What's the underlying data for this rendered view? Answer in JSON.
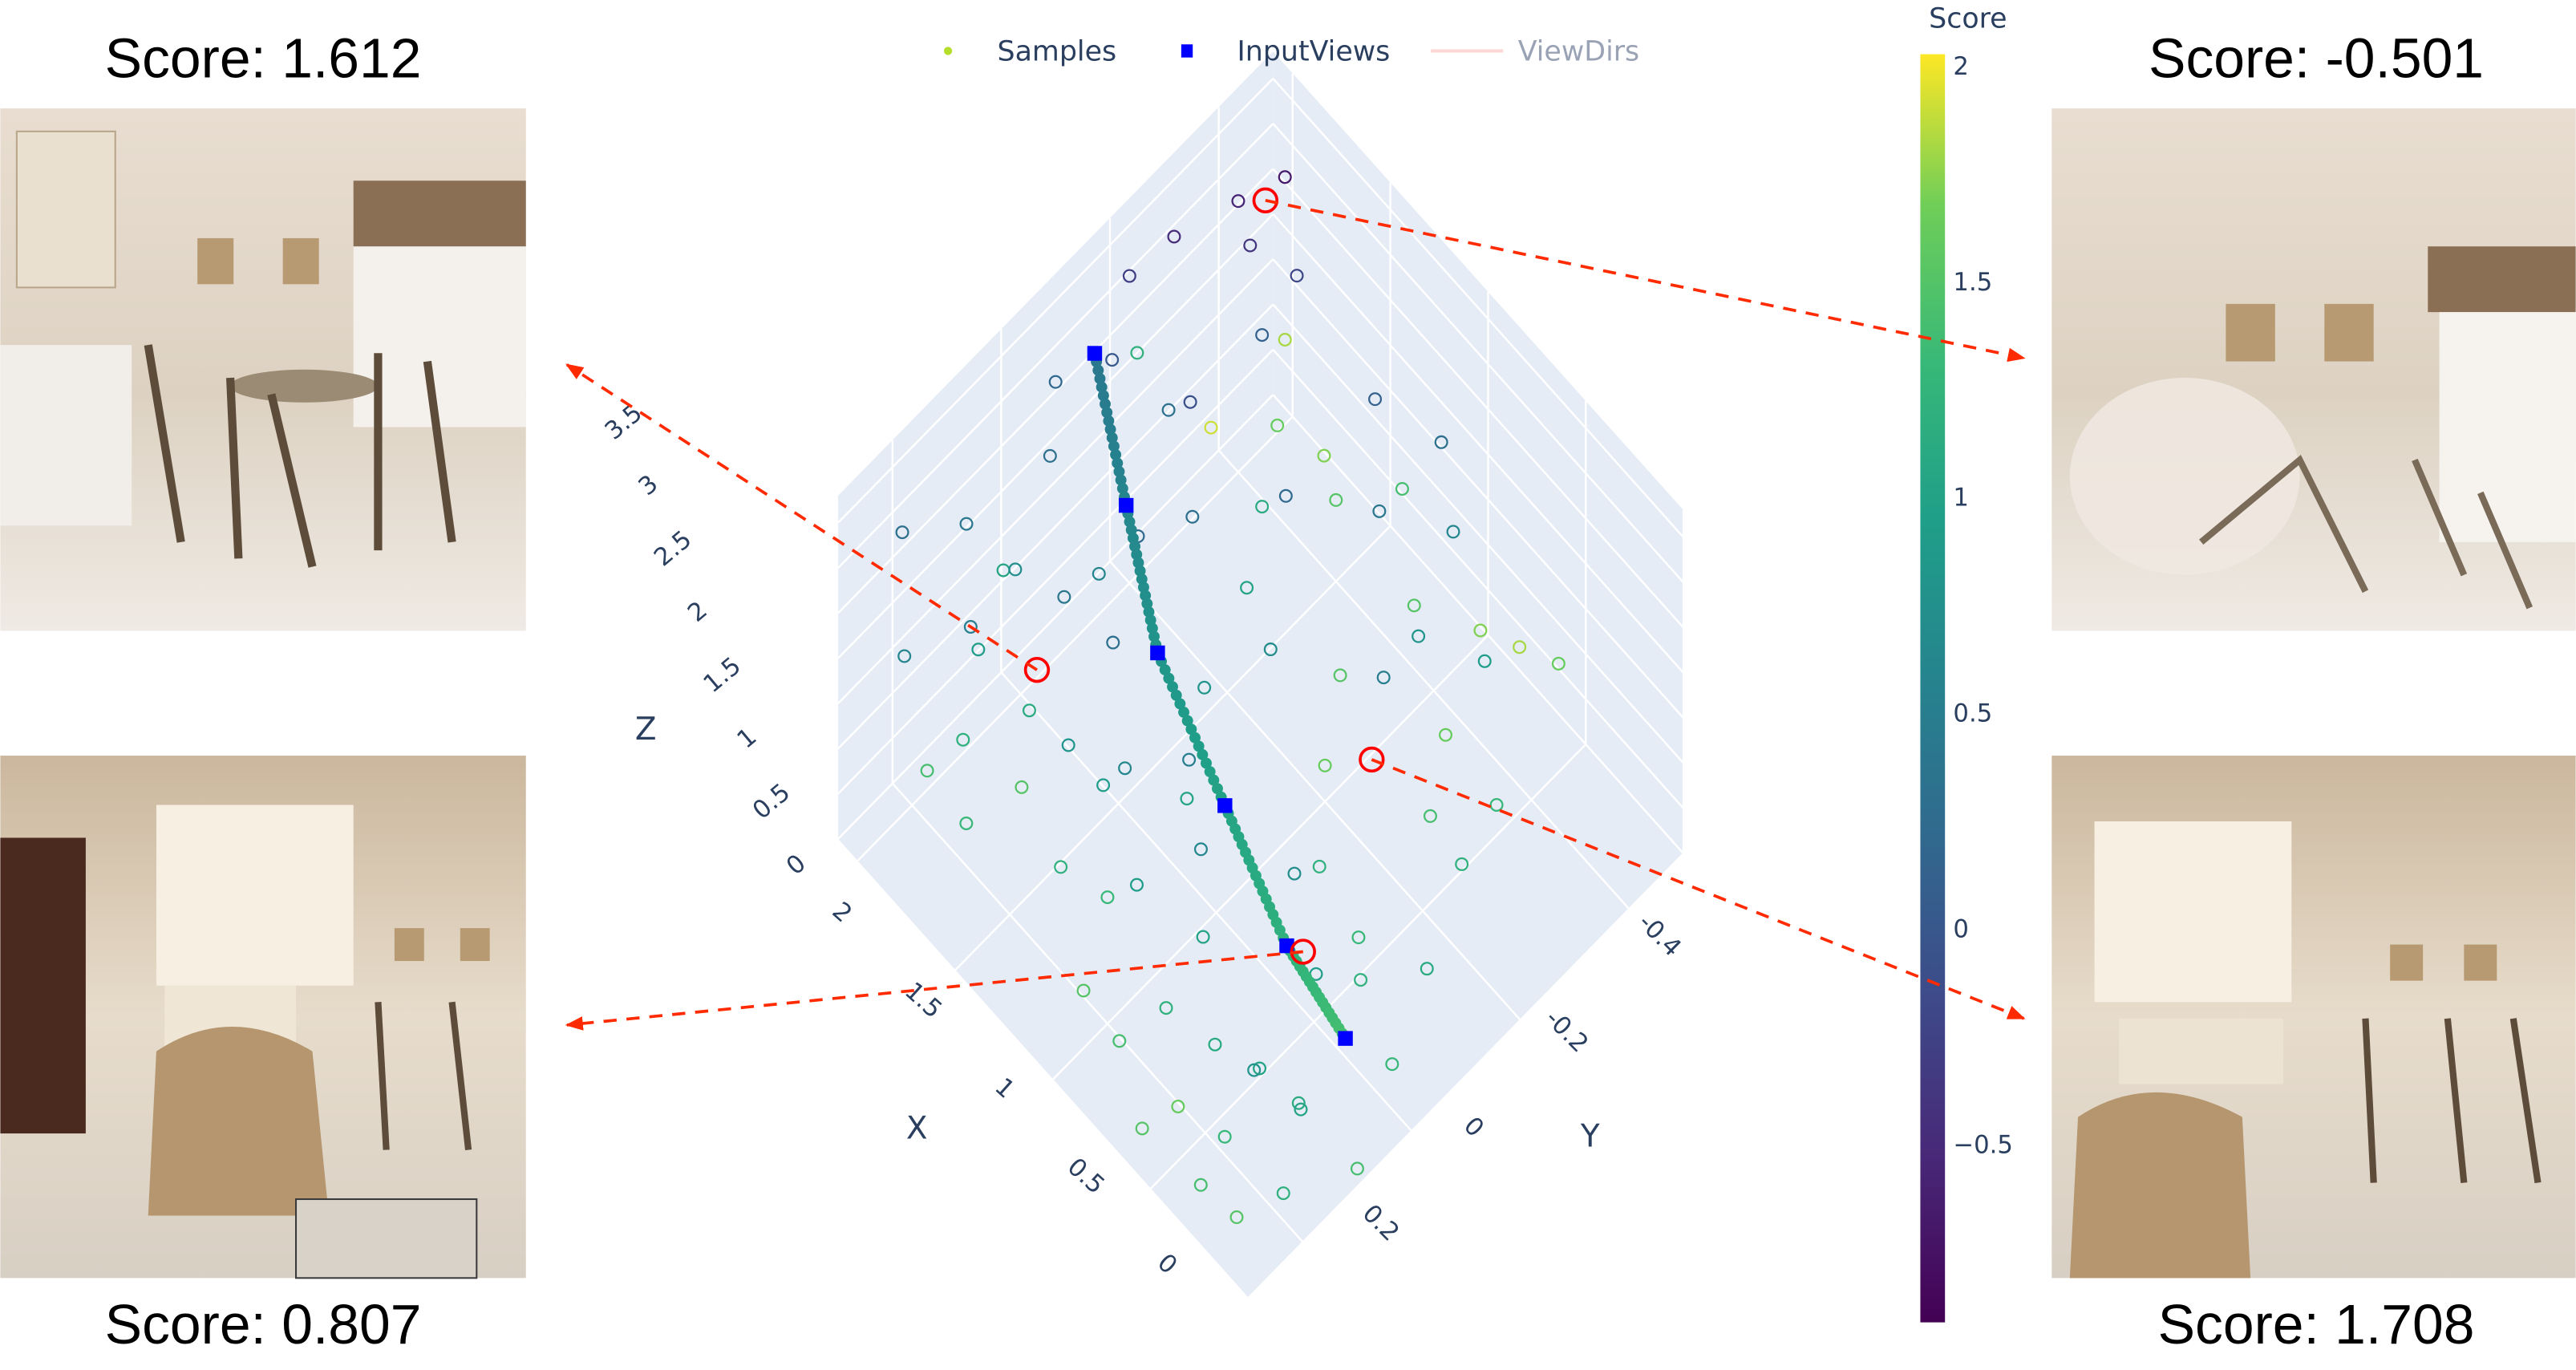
{
  "panels": {
    "top_left_score": "Score: 1.612",
    "top_right_score": "Score: -0.501",
    "bottom_left_score": "Score: 0.807",
    "bottom_right_score": "Score: 1.708"
  },
  "colors": {
    "wall": "#e5ecf6",
    "grid": "#ffffff",
    "input_views": "#0000ff",
    "arrow": "#ff2a00",
    "highlight": "#ff0000",
    "view_dirs": "#ffd6d6"
  },
  "chart_data": {
    "type": "scatter3d",
    "legend": {
      "placement": "top",
      "items": [
        {
          "name": "Samples",
          "icon": "dot"
        },
        {
          "name": "InputViews",
          "icon": "square"
        },
        {
          "name": "ViewDirs",
          "icon": "line",
          "hidden": true
        }
      ]
    },
    "axes": {
      "x": {
        "title": "X",
        "range": [
          0,
          2.1
        ],
        "ticks": [
          "0",
          "0.5",
          "1",
          "1.5",
          "2"
        ]
      },
      "y": {
        "title": "Y",
        "range": [
          -0.5,
          0.3
        ],
        "ticks": [
          "-0.4",
          "-0.2",
          "0",
          "0.2"
        ]
      },
      "z": {
        "title": "Z",
        "range": [
          0,
          3.8
        ],
        "ticks": [
          "0",
          "0.5",
          "1",
          "1.5",
          "2",
          "2.5",
          "3",
          "3.5"
        ]
      }
    },
    "colorbar": {
      "title": "Score",
      "colorscale": "viridis",
      "range": [
        -0.92,
        2.02
      ],
      "ticks": [
        "2",
        "1.5",
        "1",
        "0.5",
        "0",
        "−0.5"
      ]
    },
    "input_views": [
      [
        1.9,
        -0.1,
        3.4
      ],
      [
        1.6,
        -0.05,
        2.75
      ],
      [
        1.3,
        0,
        2.15
      ],
      [
        0.9,
        0.02,
        1.55
      ],
      [
        0.5,
        0.05,
        1.15
      ],
      [
        0.2,
        0.05,
        0.85
      ]
    ],
    "view_path_score_range": [
      0.4,
      1.4
    ],
    "highlighted": [
      {
        "x": 1.5,
        "y": 0.15,
        "z": 2.4,
        "score": 1.612
      },
      {
        "x": 2.0,
        "y": -0.45,
        "z": 2.7,
        "score": -0.501
      },
      {
        "x": 0.5,
        "y": 0.02,
        "z": 0.9,
        "score": 0.807
      },
      {
        "x": 0.9,
        "y": -0.25,
        "z": 0.4,
        "score": 1.708
      }
    ],
    "samples": [
      [
        2.0,
        -0.4,
        3.0,
        -0.6
      ],
      [
        1.9,
        -0.45,
        3.2,
        -0.7
      ],
      [
        2.05,
        -0.3,
        3.1,
        -0.5
      ],
      [
        1.8,
        -0.35,
        3.3,
        -0.4
      ],
      [
        2.0,
        -0.2,
        3.4,
        -0.3
      ],
      [
        1.7,
        -0.4,
        2.9,
        -0.2
      ],
      [
        1.95,
        -0.15,
        2.9,
        0.0
      ],
      [
        1.6,
        -0.3,
        3.1,
        0.1
      ],
      [
        2.1,
        -0.1,
        2.6,
        0.2
      ],
      [
        1.85,
        0.0,
        3.0,
        0.3
      ],
      [
        2.0,
        0.1,
        2.5,
        0.4
      ],
      [
        1.7,
        0.2,
        2.7,
        0.5
      ],
      [
        1.9,
        0.25,
        2.2,
        0.6
      ],
      [
        1.5,
        0.1,
        2.9,
        0.4
      ],
      [
        1.8,
        0.15,
        1.9,
        0.9
      ],
      [
        1.6,
        0.25,
        2.0,
        1.2
      ],
      [
        1.4,
        0.2,
        2.5,
        1.1
      ],
      [
        1.7,
        0.28,
        1.6,
        1.4
      ],
      [
        1.3,
        0.25,
        2.2,
        1.5
      ],
      [
        1.5,
        0.28,
        1.5,
        1.3
      ],
      [
        1.2,
        0.2,
        2.6,
        0.8
      ],
      [
        1.1,
        0.25,
        1.8,
        1.2
      ],
      [
        1.3,
        0.1,
        1.3,
        0.9
      ],
      [
        1.0,
        0.2,
        1.4,
        1.3
      ],
      [
        0.9,
        0.28,
        1.1,
        1.5
      ],
      [
        0.8,
        0.25,
        0.6,
        1.4
      ],
      [
        0.7,
        0.2,
        0.9,
        1.2
      ],
      [
        0.6,
        0.28,
        0.3,
        1.5
      ],
      [
        0.5,
        0.25,
        0.6,
        1.6
      ],
      [
        0.4,
        0.2,
        0.2,
        1.3
      ],
      [
        0.3,
        0.28,
        0.4,
        1.4
      ],
      [
        0.2,
        0.25,
        0.1,
        1.5
      ],
      [
        0.1,
        0.2,
        0.3,
        1.2
      ],
      [
        0.3,
        0.1,
        0.2,
        1.1
      ],
      [
        0.5,
        0.1,
        0.1,
        1.0
      ],
      [
        1.4,
        -0.1,
        2.8,
        0.3
      ],
      [
        1.2,
        -0.2,
        2.9,
        0.2
      ],
      [
        1.0,
        -0.3,
        2.6,
        0.4
      ],
      [
        1.3,
        -0.4,
        2.5,
        0.1
      ],
      [
        1.1,
        -0.45,
        2.2,
        0.3
      ],
      [
        0.9,
        -0.4,
        2.0,
        0.6
      ],
      [
        0.8,
        -0.3,
        1.7,
        0.8
      ],
      [
        1.0,
        -0.1,
        2.3,
        0.7
      ],
      [
        0.7,
        -0.2,
        2.1,
        0.5
      ],
      [
        0.6,
        -0.35,
        1.6,
        0.9
      ],
      [
        0.5,
        -0.45,
        1.2,
        1.6
      ],
      [
        0.7,
        -0.45,
        0.9,
        1.8
      ],
      [
        0.9,
        -0.45,
        0.6,
        1.7
      ],
      [
        1.1,
        -0.4,
        0.7,
        1.5
      ],
      [
        0.8,
        -0.35,
        0.3,
        1.6
      ],
      [
        0.6,
        -0.25,
        0.5,
        1.4
      ],
      [
        0.4,
        -0.3,
        0.8,
        1.3
      ],
      [
        0.3,
        -0.2,
        1.0,
        1.2
      ],
      [
        0.2,
        -0.1,
        0.7,
        1.1
      ],
      [
        0.4,
        -0.05,
        0.4,
        1.2
      ],
      [
        0.1,
        0.0,
        0.5,
        1.3
      ],
      [
        0.0,
        0.1,
        0.2,
        1.4
      ],
      [
        0.15,
        0.15,
        0.8,
        1.0
      ],
      [
        0.35,
        0.05,
        1.2,
        0.9
      ],
      [
        0.6,
        0.0,
        1.4,
        0.7
      ],
      [
        0.8,
        0.1,
        1.8,
        0.6
      ],
      [
        1.0,
        0.05,
        2.0,
        0.5
      ],
      [
        1.2,
        -0.05,
        1.7,
        0.8
      ],
      [
        1.4,
        -0.2,
        1.4,
        1.0
      ],
      [
        1.6,
        -0.3,
        1.2,
        1.1
      ],
      [
        1.8,
        -0.4,
        1.0,
        1.6
      ],
      [
        1.9,
        -0.45,
        1.4,
        1.8
      ],
      [
        2.0,
        -0.35,
        0.8,
        1.9
      ],
      [
        1.7,
        -0.45,
        0.6,
        1.7
      ],
      [
        1.5,
        -0.4,
        0.9,
        1.5
      ],
      [
        1.3,
        -0.45,
        1.2,
        1.4
      ],
      [
        1.6,
        0.0,
        2.3,
        0.6
      ],
      [
        1.8,
        -0.2,
        2.4,
        0.3
      ],
      [
        1.4,
        0.0,
        3.2,
        0.2
      ],
      [
        1.55,
        -0.15,
        3.4,
        -0.1
      ],
      [
        1.25,
        0.1,
        3.0,
        0.3
      ],
      [
        1.05,
        0.15,
        2.4,
        0.6
      ],
      [
        0.85,
        0.2,
        1.9,
        0.9
      ],
      [
        0.65,
        0.15,
        1.5,
        1.0
      ],
      [
        0.45,
        0.2,
        1.1,
        1.1
      ],
      [
        0.25,
        0.2,
        1.3,
        0.8
      ],
      [
        2.05,
        0.2,
        2.9,
        0.3
      ],
      [
        1.95,
        0.05,
        1.8,
        1.0
      ],
      [
        2.1,
        -0.25,
        2.0,
        1.2
      ],
      [
        1.75,
        0.1,
        2.6,
        0.7
      ],
      [
        0.55,
        -0.1,
        0.2,
        1.3
      ],
      [
        0.75,
        -0.1,
        0.5,
        1.2
      ],
      [
        1.0,
        -0.2,
        0.4,
        1.6
      ],
      [
        1.2,
        -0.3,
        0.3,
        1.5
      ],
      [
        1.15,
        0.0,
        0.9,
        1.0
      ]
    ]
  }
}
